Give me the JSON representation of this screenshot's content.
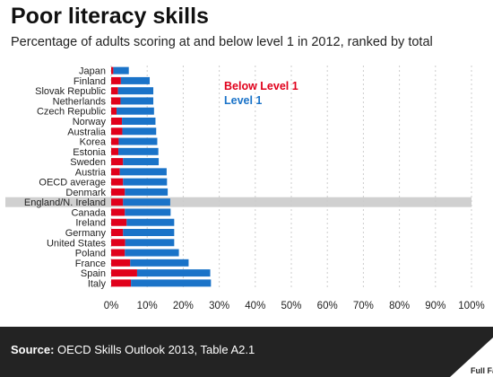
{
  "header": {
    "title": "Poor literacy skills",
    "subtitle": "Percentage of adults scoring at and below level 1 in 2012, ranked by total"
  },
  "footer": {
    "source_label": "Source:",
    "source_text": "OECD Skills Outlook 2013, Table A2.1",
    "logo_text": "Full Fact"
  },
  "colors": {
    "below_level_1": "#e0001b",
    "level_1": "#1a73c8",
    "highlight_row": "#d0d0d0",
    "grid": "#cccccc",
    "footer_bg": "#232323"
  },
  "chart_data": {
    "type": "bar",
    "orientation": "horizontal",
    "stacked": true,
    "title": "Poor literacy skills",
    "subtitle": "Percentage of adults scoring at and below level 1 in 2012, ranked by total",
    "categories": [
      "Japan",
      "Finland",
      "Slovak Republic",
      "Netherlands",
      "Czech Republic",
      "Norway",
      "Australia",
      "Korea",
      "Estonia",
      "Sweden",
      "Austria",
      "OECD average",
      "Denmark",
      "England/N. Ireland",
      "Canada",
      "Ireland",
      "Germany",
      "United States",
      "Poland",
      "France",
      "Spain",
      "Italy"
    ],
    "series": [
      {
        "name": "Below Level 1",
        "color": "#e0001b",
        "values": [
          0.6,
          2.7,
          1.9,
          2.6,
          1.5,
          3.0,
          3.1,
          2.1,
          2.0,
          3.3,
          2.4,
          3.3,
          3.8,
          3.3,
          3.8,
          4.3,
          3.3,
          3.9,
          3.8,
          5.3,
          7.2,
          5.5
        ]
      },
      {
        "name": "Level 1",
        "color": "#1a73c8",
        "values": [
          4.3,
          8.0,
          9.8,
          9.1,
          10.4,
          9.3,
          9.4,
          10.7,
          11.1,
          9.9,
          13.0,
          12.2,
          11.9,
          13.1,
          12.7,
          13.2,
          14.2,
          13.6,
          15.0,
          16.2,
          20.3,
          22.2
        ]
      }
    ],
    "highlight_category": "England/N. Ireland",
    "xlim": [
      0,
      100
    ],
    "xticks": [
      0,
      10,
      20,
      30,
      40,
      50,
      60,
      70,
      80,
      90,
      100
    ],
    "xtick_labels": [
      "0%",
      "10%",
      "20%",
      "30%",
      "40%",
      "50%",
      "60%",
      "70%",
      "80%",
      "90%",
      "100%"
    ],
    "xlabel": "",
    "ylabel": "",
    "grid": true,
    "legend_position": "top"
  }
}
